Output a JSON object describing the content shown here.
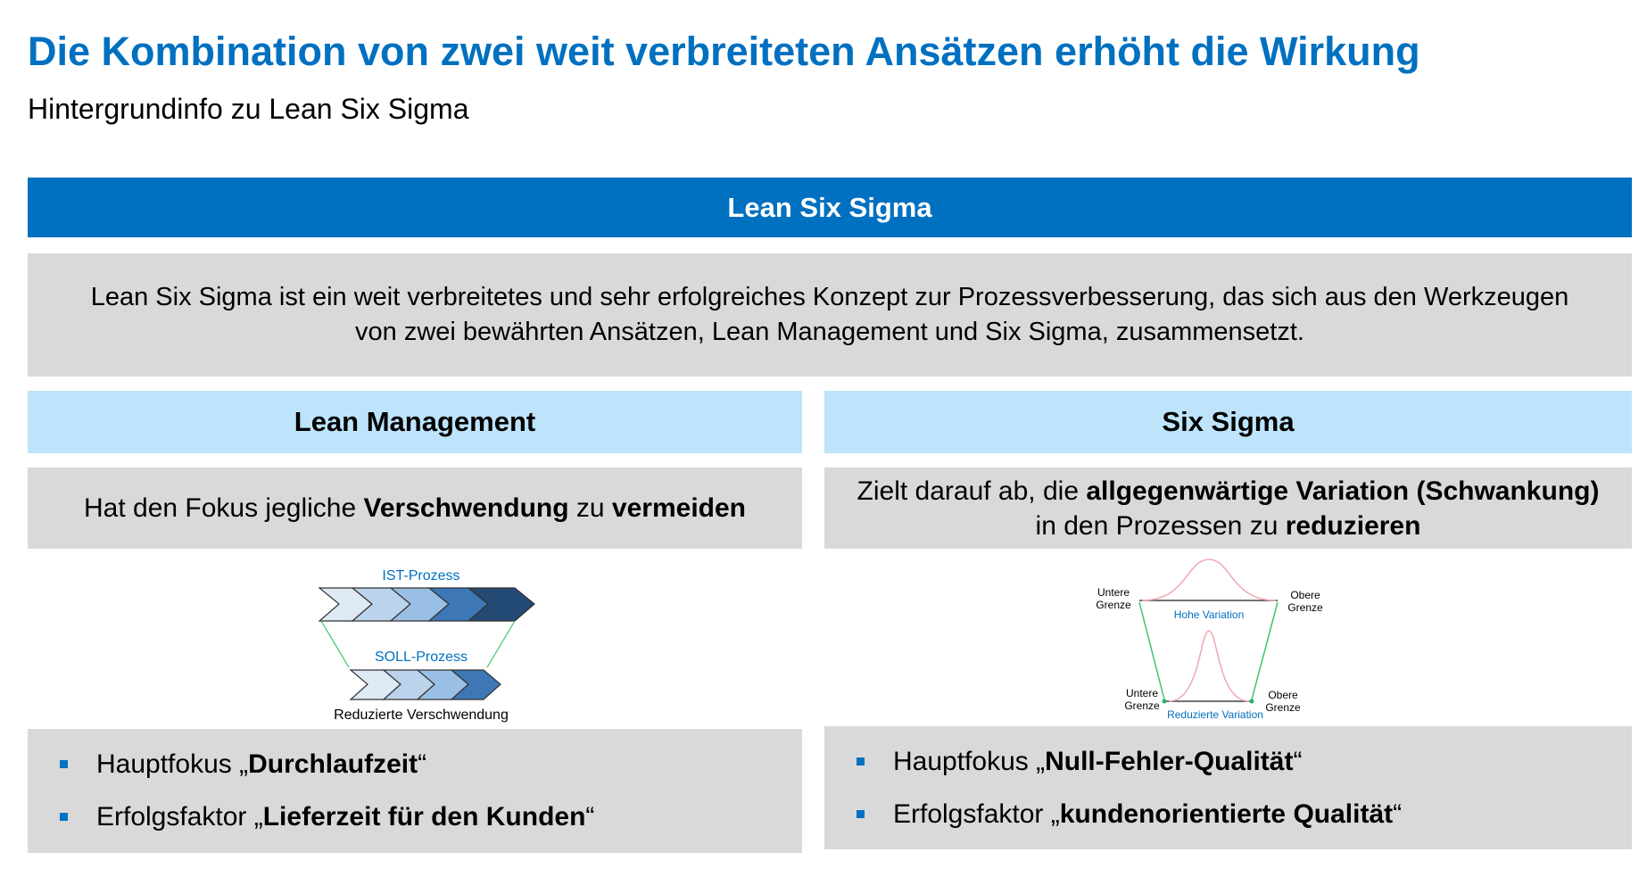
{
  "title": "Die Kombination von zwei weit verbreiteten Ansätzen erhöht die Wirkung",
  "subtitle": "Hintergrundinfo zu Lean Six Sigma",
  "banner": "Lean Six Sigma",
  "intro": "Lean Six Sigma ist ein weit verbreitetes und sehr erfolgreiches Konzept zur Prozessverbesserung, das sich aus den Werkzeugen von zwei bewährten Ansätzen, Lean Management und Six Sigma, zusammensetzt.",
  "lean": {
    "header": "Lean Management",
    "focus": {
      "a": "Hat den Fokus jegliche ",
      "b": "Verschwendung",
      "c": " zu ",
      "d": "vermeiden"
    },
    "diagram": {
      "ist": "IST-Prozess",
      "soll": "SOLL-Prozess",
      "caption": "Reduzierte Verschwendung"
    },
    "bullets": [
      {
        "pre": "Hauptfokus „",
        "bold": "Durchlaufzeit",
        "post": "“"
      },
      {
        "pre": "Erfolgsfaktor „",
        "bold": "Lieferzeit für den Kunden",
        "post": "“"
      }
    ]
  },
  "sigma": {
    "header": "Six Sigma",
    "focus": {
      "a": "Zielt darauf ab, die ",
      "b": "allgegenwärtige Variation (Schwankung)",
      "c": "in den Prozessen zu ",
      "d": "reduzieren"
    },
    "diagram": {
      "lower": "Untere",
      "upper": "Obere",
      "limit": "Grenze",
      "high": "Hohe Variation",
      "reduced": "Reduzierte Variation"
    },
    "bullets": [
      {
        "pre": "Hauptfokus „",
        "bold": "Null-Fehler-Qualität",
        "post": "“"
      },
      {
        "pre": "Erfolgsfaktor „",
        "bold": "kundenorientierte Qualität",
        "post": "“"
      }
    ]
  },
  "colors": {
    "brand": "#0070c0",
    "header_bg": "#bde4fa",
    "panel_bg": "#d9d9d9"
  }
}
